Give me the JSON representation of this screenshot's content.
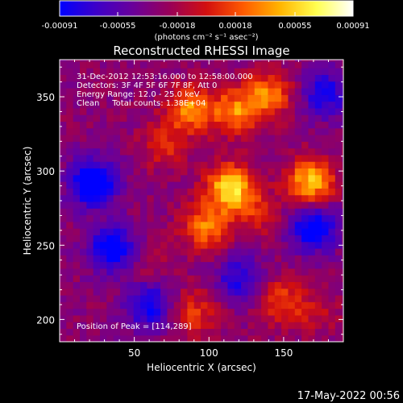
{
  "colorbar": {
    "tick_labels": [
      "-0.00091",
      "-0.00055",
      "-0.00018",
      "0.00018",
      "0.00055",
      "0.00091"
    ],
    "tick_values": [
      -0.00091,
      -0.00055,
      -0.00018,
      0.00018,
      0.00055,
      0.00091
    ],
    "range": [
      -0.00091,
      0.00091
    ],
    "units_label": "(photons cm⁻² s⁻¹ asec⁻²)",
    "colors": [
      "#0000ff",
      "#3d00c8",
      "#6a009a",
      "#990058",
      "#d20f0f",
      "#ff5a00",
      "#ffb400",
      "#ffff50",
      "#ffffff"
    ]
  },
  "chart_data": {
    "type": "heatmap",
    "title": "Reconstructed RHESSI Image",
    "xlabel": "Heliocentric X (arcsec)",
    "ylabel": "Heliocentric Y (arcsec)",
    "xlim": [
      0,
      190
    ],
    "ylim": [
      185,
      375
    ],
    "x_ticks": [
      50,
      100,
      150
    ],
    "x_tick_labels": [
      "50",
      "100",
      "150"
    ],
    "y_ticks": [
      200,
      250,
      300,
      350
    ],
    "y_tick_labels": [
      "200",
      "250",
      "300",
      "350"
    ],
    "annotations": [
      "31-Dec-2012 12:53:16.000 to 12:58:00.000",
      "Detectors: 3F 4F 5F 6F 7F 8F, Att 0",
      "Energy Range: 12.0 - 25.0 keV",
      "Clean     Total counts: 1.38E+04"
    ],
    "peak_label": "Position of Peak = [114,289]",
    "peak": [
      114,
      289
    ],
    "sources": [
      {
        "x": 114,
        "y": 289,
        "value": 0.00091
      },
      {
        "x": 168,
        "y": 293,
        "value": 0.0008
      },
      {
        "x": 88,
        "y": 342,
        "value": 0.00065
      },
      {
        "x": 118,
        "y": 340,
        "value": 0.00062
      },
      {
        "x": 140,
        "y": 352,
        "value": 0.00058
      },
      {
        "x": 70,
        "y": 318,
        "value": 0.00035
      },
      {
        "x": 98,
        "y": 262,
        "value": 0.0006
      },
      {
        "x": 132,
        "y": 272,
        "value": 0.0003
      },
      {
        "x": 90,
        "y": 205,
        "value": 0.0004
      },
      {
        "x": 148,
        "y": 212,
        "value": 0.00045
      },
      {
        "x": 172,
        "y": 205,
        "value": 0.0002
      },
      {
        "x": 60,
        "y": 236,
        "value": 0.00015
      }
    ],
    "negative_regions": [
      {
        "x": 22,
        "y": 292,
        "value": -0.00085
      },
      {
        "x": 35,
        "y": 248,
        "value": -0.0007
      },
      {
        "x": 170,
        "y": 262,
        "value": -0.00075
      },
      {
        "x": 178,
        "y": 352,
        "value": -0.00055
      },
      {
        "x": 60,
        "y": 210,
        "value": -0.0006
      },
      {
        "x": 120,
        "y": 228,
        "value": -0.0005
      }
    ]
  },
  "footer": {
    "timestamp": "17-May-2022 00:56"
  }
}
